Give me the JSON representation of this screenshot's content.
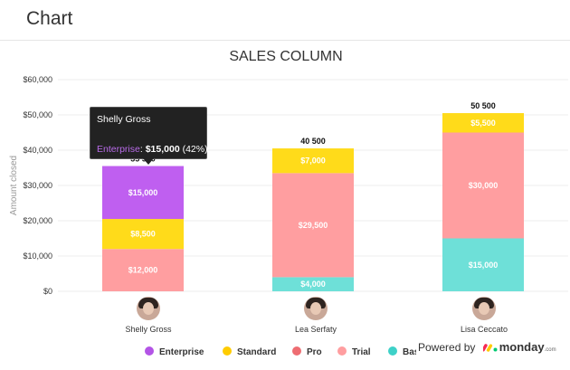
{
  "header": {
    "title": "Chart"
  },
  "tooltip": {
    "name": "Shelly Gross",
    "series": "Enterprise",
    "value": "$15,000",
    "percent": "(42%)"
  },
  "people": [
    {
      "name": "Shelly Gross"
    },
    {
      "name": "Lea Serfaty"
    },
    {
      "name": "Lisa Ceccato"
    }
  ],
  "legend": [
    {
      "label": "Enterprise",
      "color": "#b354e6"
    },
    {
      "label": "Standard",
      "color": "#ffcc00"
    },
    {
      "label": "Pro",
      "color": "#ee6d72"
    },
    {
      "label": "Trial",
      "color": "#ff9ea0"
    },
    {
      "label": "Basic",
      "color": "#3ed1c8"
    }
  ],
  "branding": {
    "prefix": "Powered by",
    "name": "monday",
    "tld": ".com"
  },
  "chart_data": {
    "type": "bar",
    "stacked": true,
    "title": "SALES COLUMN",
    "ylabel": "Amount closed",
    "xlabel": "",
    "categories": [
      "Shelly Gross",
      "Lea Serfaty",
      "Lisa Ceccato"
    ],
    "ylim": [
      0,
      60000
    ],
    "yticks": [
      0,
      10000,
      20000,
      30000,
      40000,
      50000,
      60000
    ],
    "ytick_labels": [
      "$0",
      "$10,000",
      "$20,000",
      "$30,000",
      "$40,000",
      "$50,000",
      "$60,000"
    ],
    "grid": true,
    "legend_position": "bottom",
    "series": [
      {
        "name": "Basic",
        "color": "#6ee0d8",
        "values": [
          0,
          4000,
          15000
        ],
        "labels": [
          "",
          "$4,000",
          "$15,000"
        ]
      },
      {
        "name": "Trial",
        "color": "#ff9ea0",
        "values": [
          12000,
          0,
          0
        ],
        "labels": [
          "$12,000",
          "",
          ""
        ]
      },
      {
        "name": "Pro",
        "color": "#ff9ea0",
        "values": [
          0,
          29500,
          30000
        ],
        "labels": [
          "",
          "$29,500",
          "$30,000"
        ]
      },
      {
        "name": "Standard",
        "color": "#ffdb1a",
        "values": [
          8500,
          7000,
          5500
        ],
        "labels": [
          "$8,500",
          "$7,000",
          "$5,500"
        ]
      },
      {
        "name": "Enterprise",
        "color": "#bf5ff0",
        "values": [
          15000,
          0,
          0
        ],
        "labels": [
          "$15,000",
          "",
          ""
        ]
      }
    ],
    "totals": [
      35500,
      40500,
      50500
    ],
    "total_labels": [
      "35 500",
      "40 500",
      "50 500"
    ]
  }
}
